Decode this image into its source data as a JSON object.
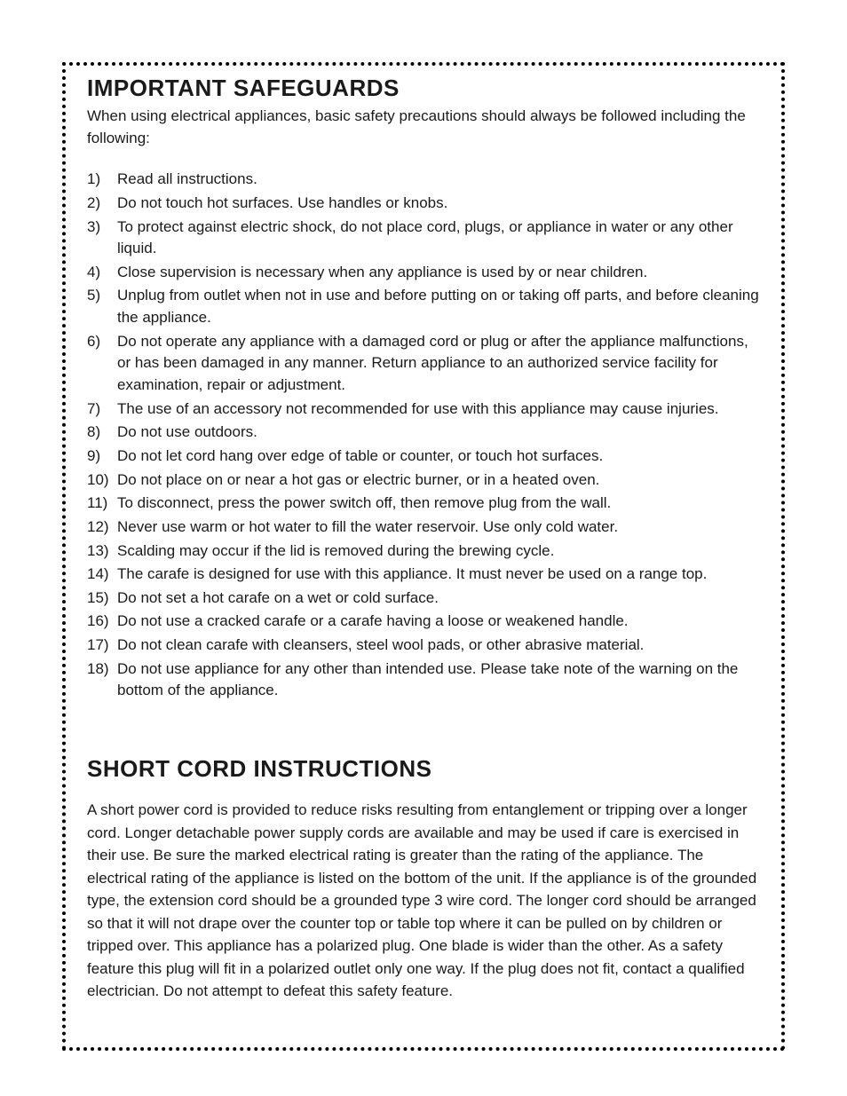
{
  "page": {
    "background_color": "#ffffff",
    "text_color": "#1a1a1a",
    "border_color": "#000000",
    "font_family": "Arial",
    "title_fontsize": 26,
    "body_fontsize": 17
  },
  "safeguards": {
    "title": "IMPORTANT SAFEGUARDS",
    "intro": "When using electrical appliances, basic safety precautions should always be followed including the following:",
    "items": [
      {
        "num": "1)",
        "text": "Read all instructions."
      },
      {
        "num": "2)",
        "text": "Do not touch hot surfaces. Use handles or knobs."
      },
      {
        "num": "3)",
        "text": "To protect against electric shock, do not place cord, plugs, or appliance in water or any other liquid."
      },
      {
        "num": "4)",
        "text": "Close supervision is necessary when any appliance is used by or near children."
      },
      {
        "num": "5)",
        "text": "Unplug from outlet when not in use and before putting on or taking off parts, and before cleaning the appliance."
      },
      {
        "num": "6)",
        "text": "Do not operate any appliance with a damaged cord or plug or after the appliance malfunctions, or has been damaged in any manner. Return appliance to an authorized service facility for examination, repair or adjustment."
      },
      {
        "num": "7)",
        "text": "The use of an accessory not recommended for use with this appliance may cause injuries."
      },
      {
        "num": "8)",
        "text": "Do not use outdoors."
      },
      {
        "num": "9)",
        "text": "Do not let cord hang over edge of table or counter, or touch hot surfaces."
      },
      {
        "num": "10)",
        "text": "Do not place on or near a hot gas or electric burner, or in a heated oven."
      },
      {
        "num": "11)",
        "text": "To disconnect, press the power switch off, then remove plug from the wall."
      },
      {
        "num": "12)",
        "text": "Never use warm or hot water to fill the water reservoir. Use only cold water."
      },
      {
        "num": "13)",
        "text": "Scalding may occur if the lid is removed during the brewing cycle."
      },
      {
        "num": "14)",
        "text": "The carafe is designed for use with this appliance. It must never be used on a range top."
      },
      {
        "num": "15)",
        "text": "Do not set a hot carafe on a wet or cold surface."
      },
      {
        "num": "16)",
        "text": "Do not use a cracked carafe or a carafe having a loose or weakened handle."
      },
      {
        "num": "17)",
        "text": "Do not clean carafe with cleansers, steel wool pads, or other abrasive material."
      },
      {
        "num": "18)",
        "text": "Do not use appliance for any other than intended use. Please take note of the warning on the bottom of the appliance."
      }
    ]
  },
  "short_cord": {
    "title": "SHORT CORD INSTRUCTIONS",
    "body": "A short power cord is provided to reduce risks resulting from entanglement or tripping over a longer cord. Longer detachable power supply cords are available and may be used if care is exercised in their use. Be sure the marked electrical rating is greater than the rating of the appliance. The electrical rating of the appliance is listed on the bottom of the unit. If the appliance is of the grounded type, the extension cord should be a grounded type 3 wire cord. The longer cord should be arranged so that it will not drape over the counter top or table top where it can be pulled on by children or tripped over. This appliance has a polarized plug. One blade is wider than the other. As a safety feature this plug will fit in a polarized outlet only one way. If the plug does not fit, contact a qualified electrician. Do not attempt to defeat this safety feature."
  }
}
